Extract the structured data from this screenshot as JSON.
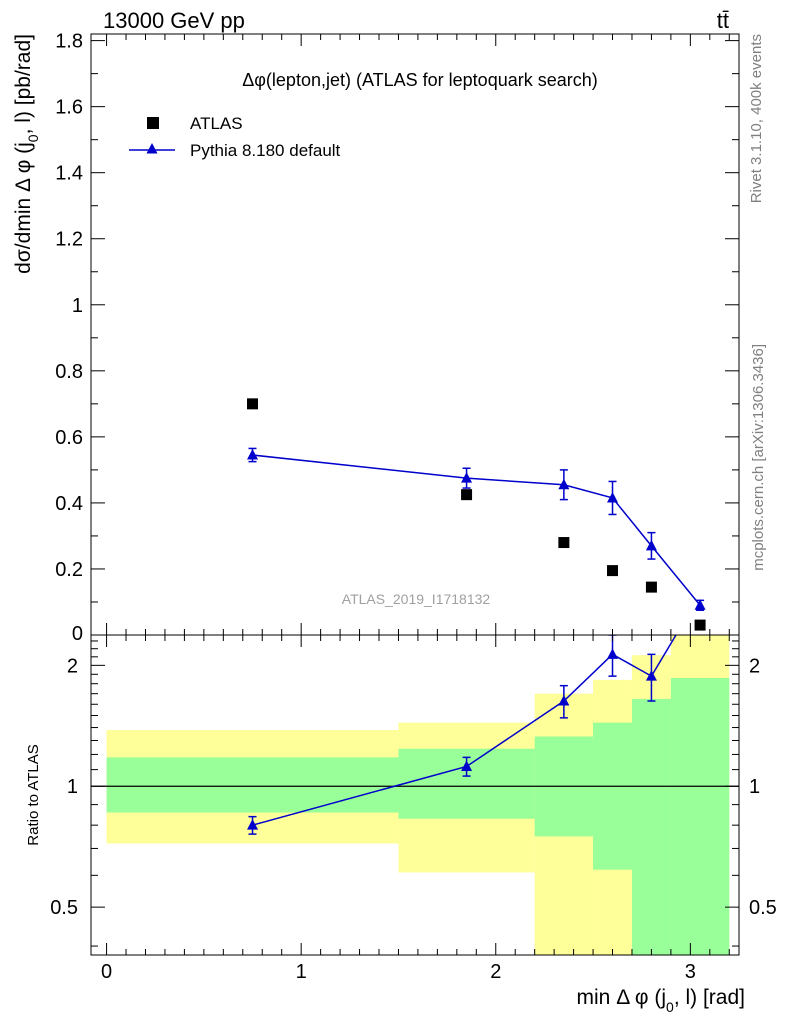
{
  "header": {
    "energy_label": "13000 GeV pp",
    "process_label": "tt̄"
  },
  "side": {
    "rivet_label": "Rivet 3.1.10,  400k events",
    "source_label": "mcplots.cern.ch [arXiv:1306.3436]"
  },
  "chart_data": {
    "type": "scatter",
    "title": "Δφ(lepton,jet) (ATLAS for leptoquark search)",
    "watermark": "ATLAS_2019_I1718132",
    "xlabel": "min Δ φ (j0, l) [rad]",
    "ylabel": "dσ/dmin Δ φ (j0, l) [pb/rad]",
    "xlim": [
      -0.08,
      3.25
    ],
    "ylim": [
      0,
      1.82
    ],
    "x_ticks": [
      "0",
      "1",
      "2",
      "3"
    ],
    "y_ticks": [
      "0.2",
      "0.4",
      "0.6",
      "0.8",
      "1",
      "1.2",
      "1.4",
      "1.6",
      "1.8"
    ],
    "legend": {
      "position": "top-left",
      "entries": [
        "ATLAS",
        "Pythia 8.180 default"
      ]
    },
    "series": [
      {
        "name": "ATLAS",
        "color": "#000000",
        "marker": "square",
        "x": [
          0.75,
          1.85,
          2.35,
          2.6,
          2.8,
          3.05
        ],
        "y": [
          0.7,
          0.425,
          0.28,
          0.195,
          0.145,
          0.03
        ]
      },
      {
        "name": "Pythia 8.180 default",
        "color": "#0000cc",
        "marker": "triangle",
        "x": [
          0.75,
          1.85,
          2.35,
          2.6,
          2.8,
          3.05
        ],
        "y": [
          0.545,
          0.475,
          0.455,
          0.415,
          0.27,
          0.09
        ],
        "err": [
          0.02,
          0.03,
          0.045,
          0.05,
          0.04,
          0.015
        ]
      }
    ],
    "ratio_panel": {
      "ylabel": "Ratio to ATLAS",
      "scale": "log",
      "ylim": [
        0.38,
        2.38
      ],
      "y_ticks": [
        "0.5",
        "1",
        "2"
      ],
      "reference_line": 1,
      "pythia_ratio": {
        "x": [
          0.75,
          1.85,
          2.35,
          2.6,
          2.8,
          3.05
        ],
        "y": [
          0.8,
          1.12,
          1.63,
          2.13,
          1.88,
          3.0
        ],
        "err": [
          0.04,
          0.06,
          0.15,
          0.25,
          0.25,
          0.3
        ]
      },
      "bands": {
        "bins": [
          [
            0,
            1.5
          ],
          [
            1.5,
            2.2
          ],
          [
            2.2,
            2.5
          ],
          [
            2.5,
            2.7
          ],
          [
            2.7,
            2.9
          ],
          [
            2.9,
            3.2
          ]
        ],
        "yellow": [
          [
            0.72,
            1.38
          ],
          [
            0.61,
            1.44
          ],
          [
            0.33,
            1.7
          ],
          [
            0.33,
            1.84
          ],
          [
            0.36,
            2.12
          ],
          [
            0.33,
            2.6
          ]
        ],
        "green": [
          [
            0.86,
            1.18
          ],
          [
            0.83,
            1.24
          ],
          [
            0.75,
            1.33
          ],
          [
            0.62,
            1.44
          ],
          [
            0.33,
            1.65
          ],
          [
            0.33,
            1.86
          ]
        ],
        "yellow_color": "#ffff99",
        "green_color": "#99ff99"
      }
    }
  }
}
